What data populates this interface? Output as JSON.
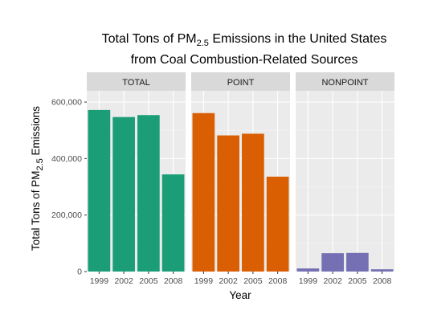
{
  "chart_data": {
    "type": "bar",
    "title_line1": "Total Tons of PM",
    "title_sub": "2.5",
    "title_line1_end": " Emissions in the United States",
    "title_line2": "from Coal Combustion-Related Sources",
    "xlabel": "Year",
    "ylabel_start": "Total Tons of PM",
    "ylabel_sub": "2.5",
    "ylabel_end": " Emissions",
    "categories": [
      "1999",
      "2002",
      "2005",
      "2008"
    ],
    "ylim": [
      0,
      640000
    ],
    "y_ticks": [
      0,
      200000,
      400000,
      600000
    ],
    "y_tick_labels": [
      "0",
      "200,000",
      "400,000",
      "600,000"
    ],
    "grid": true,
    "legend": "none",
    "panels": [
      {
        "label": "TOTAL",
        "color": "#1b9e77",
        "values": [
          572000,
          547000,
          554000,
          344000
        ]
      },
      {
        "label": "POINT",
        "color": "#d95f02",
        "values": [
          561000,
          482000,
          488000,
          336000
        ]
      },
      {
        "label": "NONPOINT",
        "color": "#7570b3",
        "values": [
          11000,
          65000,
          66000,
          8000
        ]
      }
    ]
  }
}
